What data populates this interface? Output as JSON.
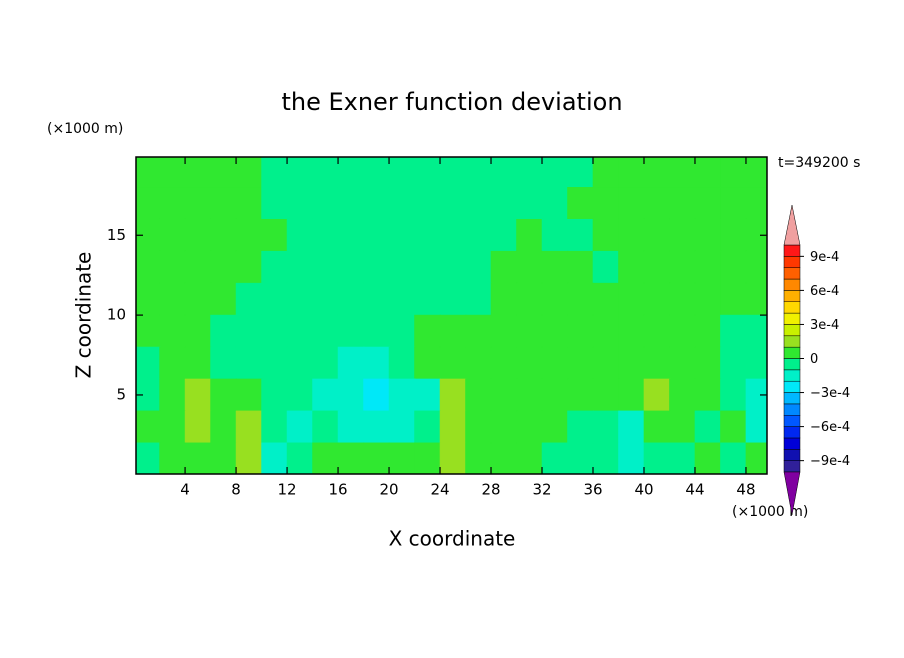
{
  "chart_data": {
    "type": "contour",
    "title": "the Exner function deviation",
    "xlabel": "X coordinate",
    "ylabel": "Z coordinate",
    "x_unit": "(×1000 m)",
    "y_unit": "(×1000 m)",
    "annotation": "t=349200 s",
    "x": [
      1,
      3,
      5,
      7,
      9,
      11,
      13,
      15,
      17,
      19,
      21,
      23,
      25,
      27,
      29,
      31,
      33,
      35,
      37,
      39,
      41,
      43,
      45,
      47,
      49
    ],
    "y": [
      19,
      17,
      15,
      13,
      11,
      9,
      7,
      5,
      3,
      1
    ],
    "z": [
      [
        5e-05,
        5e-05,
        5e-05,
        5e-05,
        5e-05,
        -5e-05,
        -5e-05,
        -5e-05,
        -5e-05,
        -5e-05,
        -5e-05,
        -5e-05,
        -5e-05,
        -5e-05,
        -5e-05,
        -5e-05,
        -5e-05,
        -5e-05,
        5e-05,
        5e-05,
        5e-05,
        5e-05,
        5e-05,
        5e-05,
        5e-05
      ],
      [
        5e-05,
        5e-05,
        5e-05,
        5e-05,
        5e-05,
        -5e-05,
        -5e-05,
        -5e-05,
        -5e-05,
        -5e-05,
        -5e-05,
        -5e-05,
        -5e-05,
        -5e-05,
        -5e-05,
        -5e-05,
        -5e-05,
        5e-05,
        5e-05,
        5e-05,
        5e-05,
        5e-05,
        5e-05,
        5e-05,
        5e-05
      ],
      [
        5e-05,
        5e-05,
        5e-05,
        5e-05,
        5e-05,
        5e-05,
        -5e-05,
        -5e-05,
        -5e-05,
        -5e-05,
        -5e-05,
        -5e-05,
        -5e-05,
        -5e-05,
        -5e-05,
        5e-05,
        -5e-05,
        -5e-05,
        5e-05,
        5e-05,
        5e-05,
        5e-05,
        5e-05,
        5e-05,
        5e-05
      ],
      [
        5e-05,
        5e-05,
        5e-05,
        5e-05,
        5e-05,
        -5e-05,
        -5e-05,
        -5e-05,
        -5e-05,
        -5e-05,
        -5e-05,
        -5e-05,
        -5e-05,
        -5e-05,
        5e-05,
        5e-05,
        5e-05,
        5e-05,
        -5e-05,
        5e-05,
        5e-05,
        5e-05,
        5e-05,
        5e-05,
        5e-05
      ],
      [
        5e-05,
        5e-05,
        5e-05,
        5e-05,
        -5e-05,
        -5e-05,
        -5e-05,
        -5e-05,
        -5e-05,
        -5e-05,
        -5e-05,
        -5e-05,
        -5e-05,
        -5e-05,
        5e-05,
        5e-05,
        5e-05,
        5e-05,
        5e-05,
        5e-05,
        5e-05,
        5e-05,
        5e-05,
        5e-05,
        5e-05
      ],
      [
        5e-05,
        5e-05,
        5e-05,
        -5e-05,
        -5e-05,
        -5e-05,
        -5e-05,
        -5e-05,
        -5e-05,
        -5e-05,
        -5e-05,
        5e-05,
        5e-05,
        5e-05,
        5e-05,
        5e-05,
        5e-05,
        5e-05,
        5e-05,
        5e-05,
        5e-05,
        5e-05,
        5e-05,
        -5e-05,
        -5e-05
      ],
      [
        -5e-05,
        5e-05,
        5e-05,
        -5e-05,
        -5e-05,
        -5e-05,
        -5e-05,
        -5e-05,
        -0.00015,
        -0.00015,
        -5e-05,
        5e-05,
        5e-05,
        5e-05,
        5e-05,
        5e-05,
        5e-05,
        5e-05,
        5e-05,
        5e-05,
        5e-05,
        5e-05,
        5e-05,
        -5e-05,
        -5e-05
      ],
      [
        -5e-05,
        5e-05,
        0.00015,
        5e-05,
        5e-05,
        -5e-05,
        -5e-05,
        -0.00015,
        -0.00015,
        -0.00025,
        -0.00015,
        -0.00015,
        0.00015,
        5e-05,
        5e-05,
        5e-05,
        5e-05,
        5e-05,
        5e-05,
        5e-05,
        0.00015,
        5e-05,
        5e-05,
        -5e-05,
        -0.00015
      ],
      [
        5e-05,
        5e-05,
        0.00015,
        5e-05,
        0.00015,
        -5e-05,
        -0.00015,
        -5e-05,
        -0.00015,
        -0.00015,
        -0.00015,
        -5e-05,
        0.00015,
        5e-05,
        5e-05,
        5e-05,
        5e-05,
        -5e-05,
        -5e-05,
        -0.00015,
        5e-05,
        5e-05,
        -5e-05,
        5e-05,
        -0.00015
      ],
      [
        -5e-05,
        5e-05,
        5e-05,
        5e-05,
        0.00015,
        -0.00015,
        -5e-05,
        5e-05,
        5e-05,
        5e-05,
        5e-05,
        5e-05,
        0.00015,
        5e-05,
        5e-05,
        5e-05,
        -5e-05,
        -5e-05,
        -5e-05,
        -0.00015,
        -5e-05,
        -5e-05,
        5e-05,
        -5e-05,
        5e-05
      ]
    ],
    "xlim": [
      0.15,
      49.65
    ],
    "ylim": [
      0.05,
      19.9
    ],
    "xticks": [
      4,
      8,
      12,
      16,
      20,
      24,
      28,
      32,
      36,
      40,
      44,
      48
    ],
    "yticks": [
      5,
      10,
      15
    ],
    "levels": [
      -0.001,
      -0.0009,
      -0.0008,
      -0.0007,
      -0.0006,
      -0.0005,
      -0.0004,
      -0.0003,
      -0.0002,
      -0.0001,
      0,
      0.0001,
      0.0002,
      0.0003,
      0.0004,
      0.0005,
      0.0006,
      0.0007,
      0.0008,
      0.0009,
      0.001
    ],
    "colors": [
      "#8000a0",
      "#30209a",
      "#1010b0",
      "#0000d8",
      "#0028f0",
      "#0058ff",
      "#0088ff",
      "#00b8ff",
      "#00e8f8",
      "#00f0c8",
      "#00f08c",
      "#30e830",
      "#98e020",
      "#c8f000",
      "#f0f000",
      "#ffd800",
      "#ffb000",
      "#ff8800",
      "#ff6000",
      "#ff3800",
      "#ff1818",
      "#f0a0a0"
    ],
    "colorbar_ticks": [
      {
        "value": 0.0009,
        "label": "9e-4"
      },
      {
        "value": 0.0006,
        "label": "6e-4"
      },
      {
        "value": 0.0003,
        "label": "3e-4"
      },
      0,
      {
        "value": -0.0003,
        "label": "−3e-4"
      },
      {
        "value": -0.0006,
        "label": "−6e-4"
      },
      {
        "value": -0.0009,
        "label": "−9e-4"
      }
    ]
  }
}
